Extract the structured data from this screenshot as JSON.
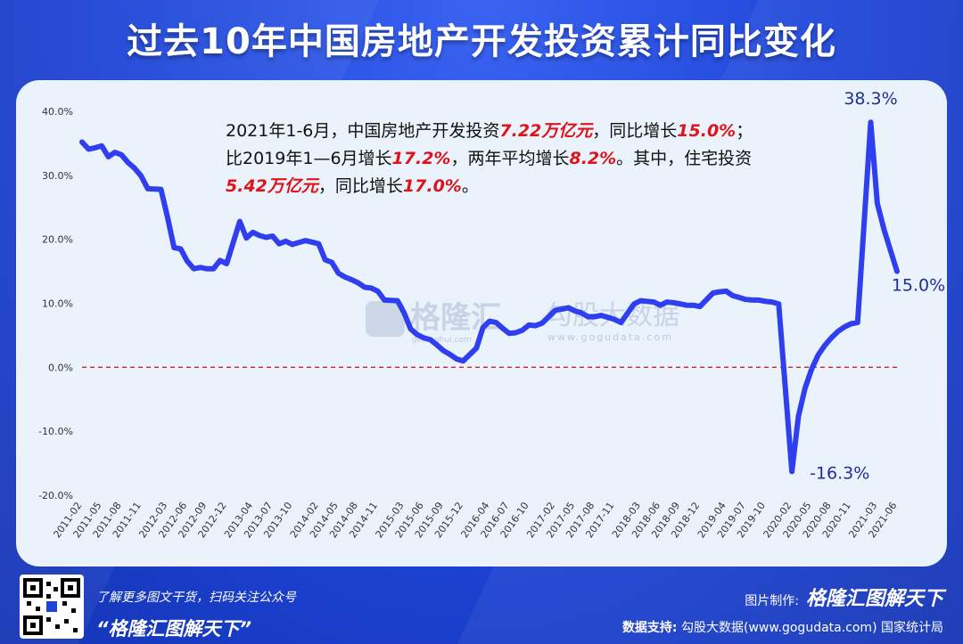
{
  "title": "过去10年中国房地产开发投资累计同比变化",
  "annotation": {
    "p1": "2021年1-6月，中国房地产开发投资",
    "h1": "7.22万亿元",
    "p2": "，同比增长",
    "h2": "15.0%",
    "p3": "；",
    "p4": "比2019年1—6月增长",
    "h3": "17.2%",
    "p5": "，两年平均增长",
    "h4": "8.2%",
    "p6": "。其中，住宅投资",
    "h5": "5.42万亿元",
    "p7": "，同比增长",
    "h6": "17.0%",
    "p8": "。"
  },
  "watermark": {
    "left": "格隆汇",
    "left_sub": "gelonghui.com",
    "right": "勾股大数据",
    "right_sub": "www.gogudata.com"
  },
  "footer": {
    "line1": "了解更多图文干货，扫码关注公众号",
    "line2": "“格隆汇图解天下”",
    "made_by_label": "图片制作:",
    "made_by_brand": "格隆汇图解天下",
    "support_label": "数据支持:",
    "support_text": "勾股大数据(www.gogudata.com)  国家统计局"
  },
  "colors": {
    "background": "#1d44d6",
    "panel": "#eaf2fb",
    "line": "#2f3ff0",
    "zero_line": "#d9232a",
    "highlight": "#e0121a",
    "label": "#1f2e9c"
  },
  "chart_data": {
    "type": "line",
    "title": "过去10年中国房地产开发投资累计同比变化",
    "xlabel": "",
    "ylabel": "",
    "ylim": [
      -20,
      40
    ],
    "y_ticks": [
      "40.0%",
      "30.0%",
      "20.0%",
      "10.0%",
      "0.0%",
      "-10.0%",
      "-20.0%"
    ],
    "y_tick_values": [
      40,
      30,
      20,
      10,
      0,
      -10,
      -20
    ],
    "x_tick_labels": [
      "2011-02",
      "2011-05",
      "2011-08",
      "2011-11",
      "2012-03",
      "2012-06",
      "2012-09",
      "2012-12",
      "2013-04",
      "2013-07",
      "2013-10",
      "2014-02",
      "2014-05",
      "2014-08",
      "2014-11",
      "2015-03",
      "2015-06",
      "2015-09",
      "2015-12",
      "2016-04",
      "2016-07",
      "2016-10",
      "2017-02",
      "2017-05",
      "2017-08",
      "2017-11",
      "2018-03",
      "2018-06",
      "2018-09",
      "2018-12",
      "2019-04",
      "2019-07",
      "2019-10",
      "2020-02",
      "2020-05",
      "2020-08",
      "2020-11",
      "2021-03",
      "2021-06"
    ],
    "grid": false,
    "zero_line": "dashed",
    "series": [
      {
        "x": [
          "2011-02",
          "2011-03",
          "2011-04",
          "2011-05",
          "2011-06",
          "2011-07",
          "2011-08",
          "2011-09",
          "2011-10",
          "2011-11",
          "2011-12",
          "2012-02",
          "2012-03",
          "2012-04",
          "2012-05",
          "2012-06",
          "2012-07",
          "2012-08",
          "2012-09",
          "2012-10",
          "2012-11",
          "2012-12",
          "2013-02",
          "2013-03",
          "2013-04",
          "2013-05",
          "2013-06",
          "2013-07",
          "2013-08",
          "2013-09",
          "2013-10",
          "2013-11",
          "2013-12",
          "2014-02",
          "2014-03",
          "2014-04",
          "2014-05",
          "2014-06",
          "2014-07",
          "2014-08",
          "2014-09",
          "2014-10",
          "2014-11",
          "2014-12",
          "2015-02",
          "2015-03",
          "2015-04",
          "2015-05",
          "2015-06",
          "2015-07",
          "2015-08",
          "2015-09",
          "2015-10",
          "2015-11",
          "2015-12",
          "2016-02",
          "2016-03",
          "2016-04",
          "2016-05",
          "2016-06",
          "2016-07",
          "2016-08",
          "2016-09",
          "2016-10",
          "2016-11",
          "2016-12",
          "2017-02",
          "2017-03",
          "2017-04",
          "2017-05",
          "2017-06",
          "2017-07",
          "2017-08",
          "2017-09",
          "2017-10",
          "2017-11",
          "2017-12",
          "2018-02",
          "2018-03",
          "2018-04",
          "2018-05",
          "2018-06",
          "2018-07",
          "2018-08",
          "2018-09",
          "2018-10",
          "2018-11",
          "2018-12",
          "2019-02",
          "2019-03",
          "2019-04",
          "2019-05",
          "2019-06",
          "2019-07",
          "2019-08",
          "2019-09",
          "2019-10",
          "2019-11",
          "2019-12",
          "2020-02",
          "2020-03",
          "2020-04",
          "2020-05",
          "2020-06",
          "2020-07",
          "2020-08",
          "2020-09",
          "2020-10",
          "2020-11",
          "2020-12",
          "2021-02",
          "2021-03",
          "2021-04",
          "2021-05",
          "2021-06"
        ],
        "values": [
          35.2,
          34.1,
          34.3,
          34.6,
          32.9,
          33.6,
          33.2,
          32.0,
          31.1,
          29.9,
          27.9,
          27.8,
          23.5,
          18.7,
          18.5,
          16.6,
          15.4,
          15.6,
          15.4,
          15.4,
          16.7,
          16.2,
          22.8,
          20.2,
          21.1,
          20.6,
          20.3,
          20.5,
          19.3,
          19.7,
          19.2,
          19.5,
          19.8,
          19.3,
          16.8,
          16.4,
          14.7,
          14.1,
          13.7,
          13.2,
          12.5,
          12.4,
          11.9,
          10.5,
          10.4,
          8.5,
          6.0,
          5.1,
          4.6,
          4.3,
          3.5,
          2.6,
          2.0,
          1.3,
          1.0,
          3.0,
          6.2,
          7.2,
          7.0,
          6.1,
          5.3,
          5.4,
          5.8,
          6.6,
          6.5,
          6.9,
          8.9,
          9.1,
          9.3,
          8.8,
          8.5,
          7.9,
          7.9,
          8.1,
          7.8,
          7.5,
          7.0,
          9.9,
          10.4,
          10.3,
          10.2,
          9.7,
          10.2,
          10.1,
          9.9,
          9.7,
          9.7,
          9.5,
          11.6,
          11.8,
          11.9,
          11.2,
          10.9,
          10.6,
          10.5,
          10.5,
          10.3,
          10.2,
          9.9,
          -16.3,
          -7.7,
          -3.3,
          -0.3,
          1.9,
          3.4,
          4.6,
          5.6,
          6.3,
          6.8,
          7.0,
          38.3,
          25.6,
          21.6,
          18.3,
          15.0
        ]
      }
    ],
    "point_labels": [
      {
        "x": "2020-02",
        "text": "-16.3%"
      },
      {
        "x": "2021-02",
        "text": "38.3%"
      },
      {
        "x": "2021-06",
        "text": "15.0%"
      }
    ]
  }
}
